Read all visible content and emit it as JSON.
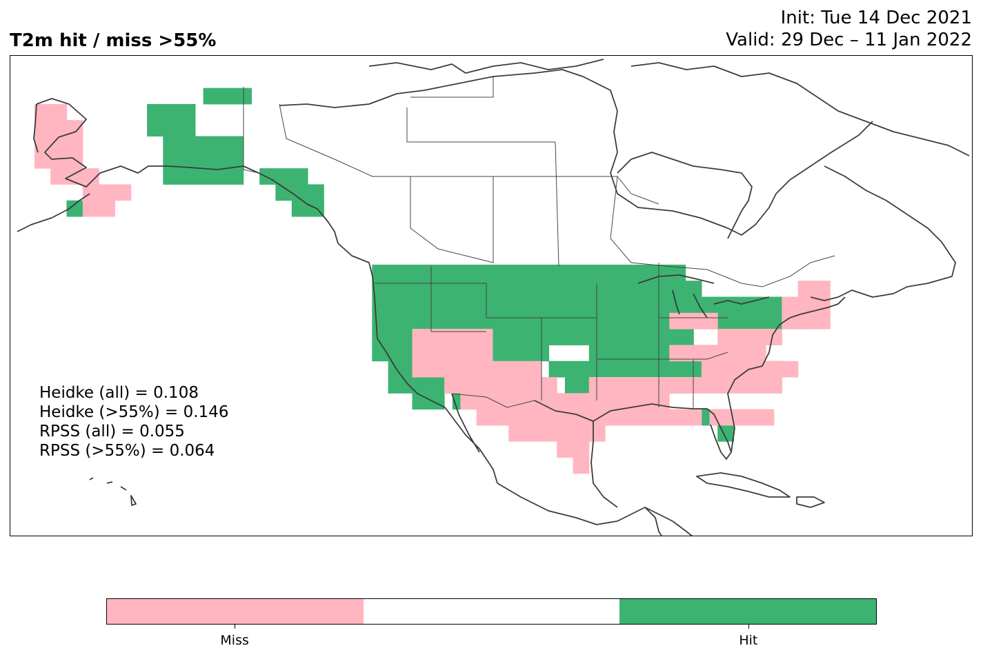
{
  "title": "T2m hit / miss  >55%",
  "init_line": "Init: Tue 14 Dec 2021",
  "valid_line": "Valid: 29 Dec – 11 Jan 2022",
  "stats": {
    "heidke_all": "Heidke (all) = 0.108",
    "heidke_55": "Heidke (>55%) = 0.146",
    "rpss_all": "RPSS (all) = 0.055",
    "rpss_55": "RPSS (>55%) = 0.064"
  },
  "colorbar": {
    "categories": [
      {
        "label": "Miss",
        "color": "#ffb6c1"
      },
      {
        "label": "",
        "color": "#ffffff"
      },
      {
        "label": "Hit",
        "color": "#3cb371"
      }
    ]
  },
  "colors": {
    "miss": "#ffb6c1",
    "hit": "#3cb371",
    "coast": "#3b3b3b",
    "border": "#444444"
  },
  "map": {
    "region": "North America",
    "grid_cells": {
      "hit": [
        [
          "Interior Alaska"
        ],
        [
          "Alaska Panhandle"
        ],
        [
          "Pacific Northwest"
        ],
        [
          "Northern Rockies"
        ],
        [
          "Northern Plains"
        ],
        [
          "Upper Midwest"
        ],
        [
          "Great Lakes"
        ],
        [
          "California coast"
        ],
        [
          "Southern Florida"
        ]
      ],
      "miss": [
        [
          "Western Alaska"
        ],
        [
          "Alaska Peninsula"
        ],
        [
          "Southwest"
        ],
        [
          "Southern Plains"
        ],
        [
          "Texas"
        ],
        [
          "Southeast"
        ],
        [
          "Ohio Valley"
        ],
        [
          "Mid-Atlantic"
        ],
        [
          "New England"
        ]
      ]
    }
  }
}
